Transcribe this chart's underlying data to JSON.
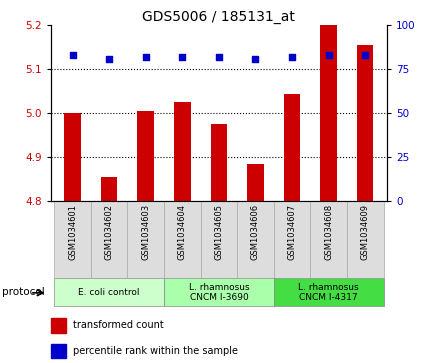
{
  "title": "GDS5006 / 185131_at",
  "samples": [
    "GSM1034601",
    "GSM1034602",
    "GSM1034603",
    "GSM1034604",
    "GSM1034605",
    "GSM1034606",
    "GSM1034607",
    "GSM1034608",
    "GSM1034609"
  ],
  "transformed_count": [
    5.0,
    4.855,
    5.005,
    5.025,
    4.975,
    4.885,
    5.045,
    5.2,
    5.155
  ],
  "percentile_rank": [
    83,
    81,
    82,
    82,
    82,
    81,
    82,
    83,
    83
  ],
  "bar_bottom": 4.8,
  "ylim_left": [
    4.8,
    5.2
  ],
  "ylim_right": [
    0,
    100
  ],
  "yticks_left": [
    4.8,
    4.9,
    5.0,
    5.1,
    5.2
  ],
  "yticks_right": [
    0,
    25,
    50,
    75,
    100
  ],
  "bar_color": "#cc0000",
  "dot_color": "#0000cc",
  "protocol_groups": [
    {
      "label": "E. coli control",
      "indices": [
        0,
        1,
        2
      ],
      "color": "#ccffcc"
    },
    {
      "label": "L. rhamnosus\nCNCM I-3690",
      "indices": [
        3,
        4,
        5
      ],
      "color": "#aaffaa"
    },
    {
      "label": "L. rhamnosus\nCNCM I-4317",
      "indices": [
        6,
        7,
        8
      ],
      "color": "#44dd44"
    }
  ],
  "sample_box_color": "#dddddd",
  "sample_box_edge": "#aaaaaa",
  "legend_bar_label": "transformed count",
  "legend_dot_label": "percentile rank within the sample",
  "protocol_label": "protocol",
  "background_color": "#ffffff"
}
